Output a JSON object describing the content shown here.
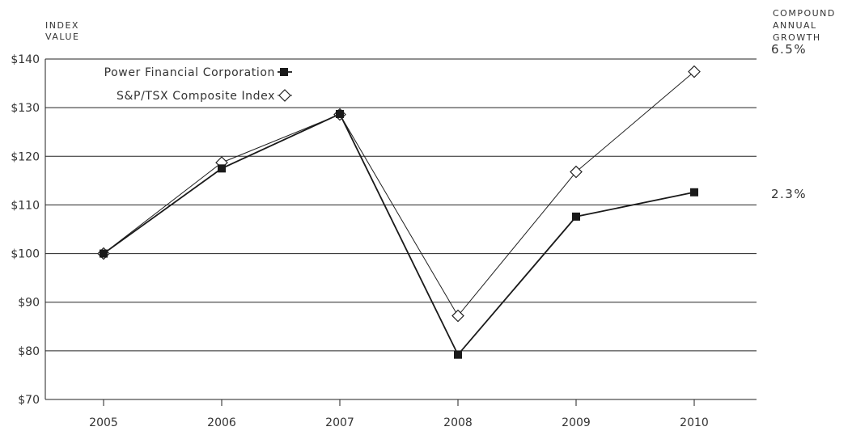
{
  "chart_data": {
    "type": "line",
    "y_axis_title": [
      "INDEX",
      "VALUE"
    ],
    "growth_title": [
      "COMPOUND",
      "ANNUAL",
      "GROWTH"
    ],
    "categories": [
      "2005",
      "2006",
      "2007",
      "2008",
      "2009",
      "2010"
    ],
    "y_ticks": [
      70,
      80,
      90,
      100,
      110,
      120,
      130,
      140
    ],
    "y_tick_labels": [
      "$70",
      "$80",
      "$90",
      "$100",
      "$110",
      "$120",
      "$130",
      "$140"
    ],
    "ylim": [
      70,
      140
    ],
    "grid": true,
    "legend_position": "top-left",
    "series": [
      {
        "name": "Power Financial Corporation",
        "marker": "filled-square",
        "color": "#1a1a1a",
        "values": [
          100,
          117.5,
          128.7,
          79.2,
          107.6,
          112.6
        ],
        "growth": "2.3%"
      },
      {
        "name": "S&P/TSX Composite Index",
        "marker": "open-diamond",
        "color": "#222222",
        "values": [
          100,
          118.7,
          128.6,
          87.2,
          116.8,
          137.4
        ],
        "growth": "6.5%"
      }
    ]
  }
}
